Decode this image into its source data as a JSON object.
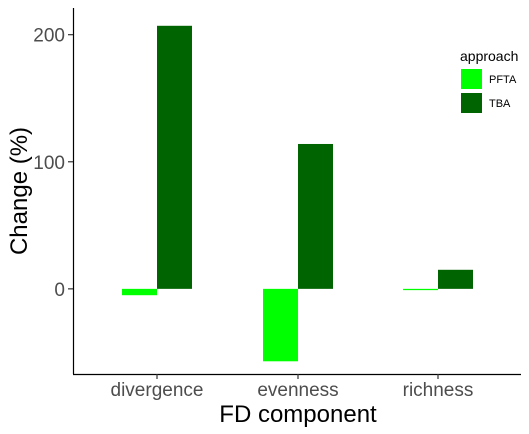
{
  "chart_data": {
    "type": "bar",
    "xlabel": "FD component",
    "ylabel": "Change (%)",
    "categories": [
      "divergence",
      "evenness",
      "richness"
    ],
    "series": [
      {
        "name": "PFTA",
        "color": "#00ff00",
        "values": [
          -5,
          -57,
          -1
        ]
      },
      {
        "name": "TBA",
        "color": "#006400",
        "values": [
          207,
          114,
          15
        ]
      }
    ],
    "ylim": [
      -67,
      221
    ],
    "yticks": [
      0,
      100,
      200
    ],
    "legend": {
      "title": "approach",
      "position": "right"
    },
    "grid": false
  }
}
